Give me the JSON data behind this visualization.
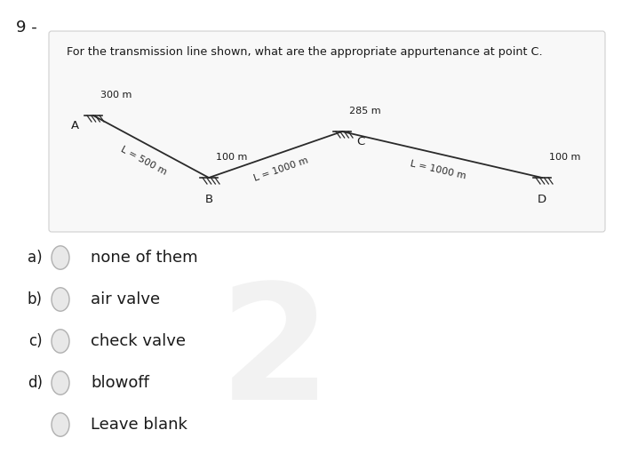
{
  "title_number": "9 -",
  "question": "For the transmission line shown, what are the appropriate appurtenance at point C.",
  "bg_color": "#ffffff",
  "points": {
    "A": [
      0.115,
      0.62
    ],
    "B": [
      0.335,
      0.3
    ],
    "C": [
      0.535,
      0.52
    ],
    "D": [
      0.865,
      0.3
    ]
  },
  "elevations": {
    "A": "300 m",
    "B": "100 m",
    "C": "285 m",
    "D": "100 m"
  },
  "segments": [
    {
      "from": "A",
      "to": "B",
      "label": "L = 500 m"
    },
    {
      "from": "B",
      "to": "C",
      "label": "L = 1000 m"
    },
    {
      "from": "C",
      "to": "D",
      "label": "L = 1000 m"
    }
  ],
  "options": [
    {
      "letter": "a)",
      "text": "none of them"
    },
    {
      "letter": "b)",
      "text": "air valve"
    },
    {
      "letter": "c)",
      "text": "check valve"
    },
    {
      "letter": "d)",
      "text": "blowoff"
    },
    {
      "letter": "",
      "text": "Leave blank"
    }
  ],
  "watermark": "2",
  "line_color": "#2a2a2a",
  "text_color": "#1a1a1a",
  "option_circle_color": "#c0c0c0",
  "panel_edge_color": "#d0d0d0",
  "panel_face_color": "#f8f8f8"
}
